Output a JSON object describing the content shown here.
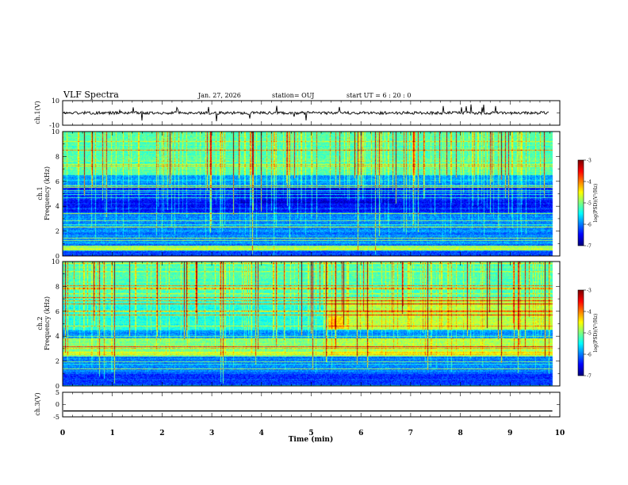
{
  "header": {
    "title": "VLF Spectra",
    "date": "Jan. 27, 2026",
    "station": "station= OUJ",
    "start": "start  UT =   6 : 20 : 0"
  },
  "chart_data": [
    {
      "type": "line",
      "panel": "ch1-waveform",
      "ylabel": "ch.1(V)",
      "ylim": [
        -10,
        10
      ],
      "yticks": [
        "10",
        "-10"
      ],
      "xlim": [
        0,
        10
      ],
      "baseline": 0,
      "noise_amplitude": 1.2
    },
    {
      "type": "heatmap",
      "panel": "ch1-spectrogram",
      "ylabel": "Frequency (kHz)",
      "channel_label": "ch.1",
      "ylim": [
        0,
        10
      ],
      "yticks": [
        "0",
        "2",
        "4",
        "6",
        "8",
        "10"
      ],
      "xlim": [
        0,
        10
      ],
      "data_end_min": 9.85,
      "colorbar": {
        "label": "log(PSD)(V²/Hz)",
        "range": [
          -7,
          -3
        ],
        "ticks": [
          "-3",
          "-4",
          "-5",
          "-6",
          "-7"
        ]
      }
    },
    {
      "type": "heatmap",
      "panel": "ch2-spectrogram",
      "ylabel": "Frequency (kHz)",
      "channel_label": "ch.2",
      "ylim": [
        0,
        10
      ],
      "yticks": [
        "0",
        "2",
        "4",
        "6",
        "8",
        "10"
      ],
      "xlim": [
        0,
        10
      ],
      "data_end_min": 9.85,
      "transition_min": 5.35,
      "colorbar": {
        "label": "log(PSD)(V²/Hz)",
        "range": [
          -7,
          -3
        ],
        "ticks": [
          "-3",
          "-4",
          "-5",
          "-6",
          "-7"
        ]
      }
    },
    {
      "type": "line",
      "panel": "ch3-waveform",
      "ylabel": "ch.3(V)",
      "ylim": [
        -5,
        5
      ],
      "yticks": [
        "5",
        "0",
        "-5"
      ],
      "xlim": [
        0,
        10
      ],
      "baseline": -2.6
    }
  ],
  "xaxis": {
    "label": "Time (min)",
    "ticks": [
      "0",
      "1",
      "2",
      "3",
      "4",
      "5",
      "6",
      "7",
      "8",
      "9",
      "10"
    ]
  },
  "colors": {
    "frame": "#000000",
    "background": "#ffffff"
  }
}
